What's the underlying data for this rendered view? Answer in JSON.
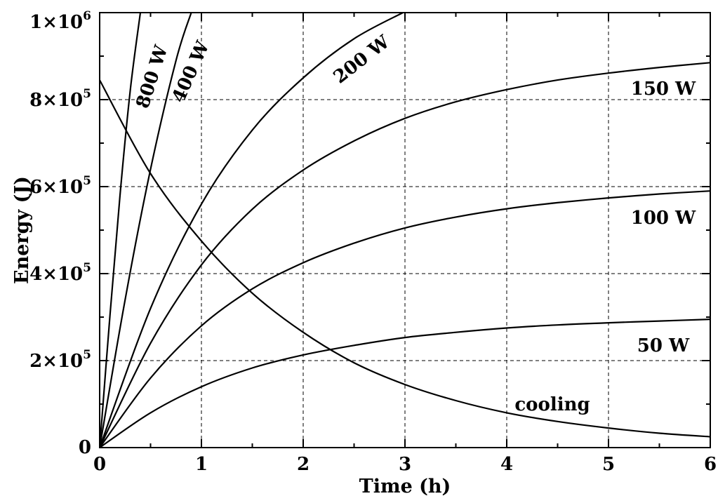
{
  "chart_data": {
    "type": "line",
    "xlabel": "Time (h)",
    "ylabel": "Energy (J)",
    "xlim": [
      0,
      6
    ],
    "ylim": [
      0,
      1000000
    ],
    "grid": true,
    "x_ticks": [
      {
        "value": 0,
        "label": "0"
      },
      {
        "value": 1,
        "label": "1"
      },
      {
        "value": 2,
        "label": "2"
      },
      {
        "value": 3,
        "label": "3"
      },
      {
        "value": 4,
        "label": "4"
      },
      {
        "value": 5,
        "label": "5"
      },
      {
        "value": 6,
        "label": "6"
      }
    ],
    "y_ticks": [
      {
        "value": 0,
        "mantissa": "0",
        "exponent": ""
      },
      {
        "value": 200000,
        "mantissa": "2×10",
        "exponent": "5"
      },
      {
        "value": 400000,
        "mantissa": "4×10",
        "exponent": "5"
      },
      {
        "value": 600000,
        "mantissa": "6×10",
        "exponent": "5"
      },
      {
        "value": 800000,
        "mantissa": "8×10",
        "exponent": "5"
      },
      {
        "value": 1000000,
        "mantissa": "1×10",
        "exponent": "6"
      }
    ],
    "series": [
      {
        "name": "50 W",
        "x": [
          0,
          0.5,
          1,
          1.5,
          2,
          2.5,
          3,
          3.5,
          4,
          4.5,
          5,
          5.5,
          6
        ],
        "y": [
          0,
          80000,
          140000,
          183000,
          213000,
          235000,
          253000,
          265000,
          275000,
          282000,
          287000,
          291000,
          295000
        ]
      },
      {
        "name": "100 W",
        "x": [
          0,
          0.5,
          1,
          1.5,
          2,
          2.5,
          3,
          3.5,
          4,
          4.5,
          5,
          5.5,
          6
        ],
        "y": [
          0,
          160000,
          280000,
          365000,
          425000,
          470000,
          505000,
          530000,
          549000,
          563000,
          574000,
          583000,
          590000
        ]
      },
      {
        "name": "150 W",
        "x": [
          0,
          0.5,
          1,
          1.5,
          2,
          2.5,
          3,
          3.5,
          4,
          4.5,
          5,
          5.5,
          6
        ],
        "y": [
          0,
          240000,
          420000,
          548000,
          638000,
          705000,
          757000,
          795000,
          823000,
          845000,
          861000,
          874000,
          885000
        ]
      },
      {
        "name": "200 W",
        "x": [
          0,
          0.5,
          1,
          1.5,
          2,
          2.5,
          2.98
        ],
        "y": [
          0,
          320000,
          560000,
          730000,
          850000,
          940000,
          1000000
        ]
      },
      {
        "name": "400 W",
        "x": [
          0,
          0.25,
          0.5,
          0.75,
          0.9
        ],
        "y": [
          0,
          340000,
          640000,
          890000,
          1000000
        ]
      },
      {
        "name": "800 W",
        "x": [
          0,
          0.1,
          0.2,
          0.3,
          0.4
        ],
        "y": [
          0,
          300000,
          580000,
          820000,
          1000000
        ]
      },
      {
        "name": "cooling",
        "x": [
          0,
          0.5,
          1,
          1.5,
          2,
          2.5,
          3,
          3.5,
          4,
          4.5,
          5,
          5.5,
          6
        ],
        "y": [
          845000,
          630000,
          475000,
          355000,
          265000,
          195000,
          145000,
          108000,
          80000,
          60000,
          45000,
          33000,
          25000
        ]
      }
    ],
    "annotations": [
      {
        "text": "800 W",
        "series": "800 W"
      },
      {
        "text": "400 W",
        "series": "400 W"
      },
      {
        "text": "200 W",
        "series": "200 W"
      },
      {
        "text": "150 W",
        "series": "150 W"
      },
      {
        "text": "100 W",
        "series": "100 W"
      },
      {
        "text": "50 W",
        "series": "50 W"
      },
      {
        "text": "cooling",
        "series": "cooling"
      }
    ]
  }
}
